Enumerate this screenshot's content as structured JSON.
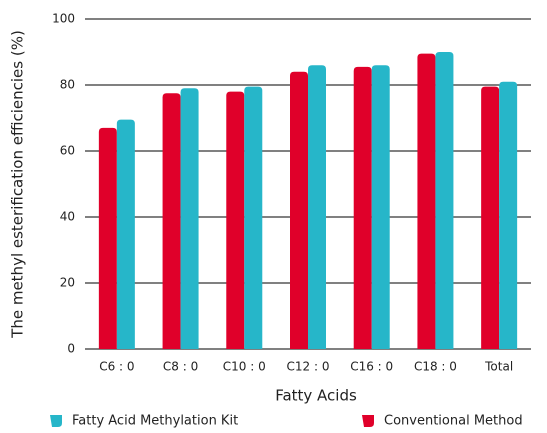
{
  "chart_data": {
    "type": "bar",
    "x_label": "Fatty Acids",
    "y_label": "The methyl esterification efficiencies (%)",
    "categories": [
      "C6 : 0",
      "C8 : 0",
      "C10 : 0",
      "C12 : 0",
      "C16 : 0",
      "C18 : 0",
      "Total"
    ],
    "series": [
      {
        "name": "Fatty Acid Methylation Kit",
        "color": "#26b6c9",
        "values": [
          69.5,
          79,
          79.5,
          86,
          86,
          90,
          81
        ]
      },
      {
        "name": "Conventional Method",
        "color": "#e0002a",
        "values": [
          67,
          77.5,
          78,
          84,
          85.5,
          89.5,
          79.5
        ]
      }
    ],
    "ylim": [
      0,
      100
    ],
    "yticks": [
      0,
      20,
      40,
      60,
      80,
      100
    ],
    "grid": true
  }
}
